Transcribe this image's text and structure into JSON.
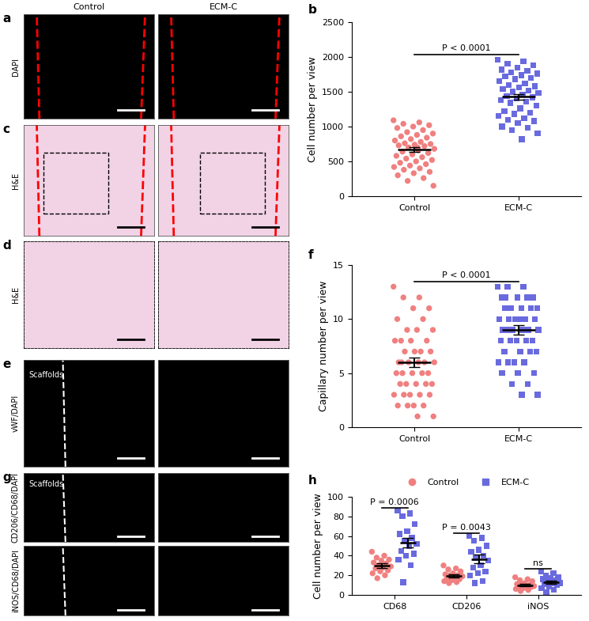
{
  "chart_data": [
    {
      "type": "scatter",
      "panel": "b",
      "categories": [
        "Control",
        "ECM-C"
      ],
      "ylabel": "Cell number per view",
      "ylim": [
        0,
        2500
      ],
      "yticks": [
        0,
        500,
        1000,
        1500,
        2000,
        2500
      ],
      "series": [
        {
          "name": "Control",
          "color": "#f08080",
          "marker": "o",
          "values": [
            [
              1090,
              1060,
              1040,
              1020,
              1000,
              980,
              950,
              920,
              900,
              880,
              860,
              840,
              820,
              800,
              780,
              760,
              750,
              740,
              730,
              720,
              700,
              680,
              660,
              640,
              620,
              600,
              580,
              560,
              540,
              520,
              500,
              480,
              460,
              440,
              420,
              400,
              380,
              350,
              330,
              300,
              260,
              220,
              150,
              700
            ],
            null
          ],
          "mean": [
            670,
            null
          ],
          "error": [
            30,
            null
          ]
        },
        {
          "name": "ECM-C",
          "color": "#6a6adf",
          "marker": "s",
          "values": [
            null,
            [
              1960,
              1940,
              1900,
              1880,
              1850,
              1820,
              1800,
              1780,
              1760,
              1740,
              1720,
              1700,
              1680,
              1650,
              1620,
              1600,
              1580,
              1560,
              1540,
              1520,
              1500,
              1480,
              1460,
              1440,
              1420,
              1400,
              1380,
              1360,
              1340,
              1300,
              1260,
              1220,
              1200,
              1180,
              1150,
              1120,
              1100,
              1080,
              1050,
              1000,
              980,
              950,
              900,
              820
            ]
          ],
          "mean": [
            null,
            1430
          ],
          "error": [
            null,
            40
          ]
        }
      ],
      "comparisons": [
        {
          "categories": [
            "Control",
            "ECM-C"
          ],
          "label": "P < 0.0001"
        }
      ]
    },
    {
      "type": "scatter",
      "panel": "f",
      "categories": [
        "Control",
        "ECM-C"
      ],
      "ylabel": "Capillary number per view",
      "ylim": [
        0,
        15
      ],
      "yticks": [
        0,
        5,
        10,
        15
      ],
      "series": [
        {
          "name": "Control",
          "color": "#f08080",
          "marker": "o",
          "values": [
            [
              13,
              12,
              12,
              11,
              11,
              10,
              10,
              9,
              9,
              9,
              8,
              8,
              8,
              8,
              7,
              7,
              7,
              7,
              6,
              6,
              6,
              6,
              6,
              5,
              5,
              5,
              5,
              5,
              4,
              4,
              4,
              4,
              4,
              3,
              3,
              3,
              3,
              3,
              2,
              2,
              2,
              2,
              1,
              1,
              6
            ],
            null
          ],
          "mean": [
            6.0,
            null
          ],
          "error": [
            0.45,
            null
          ]
        },
        {
          "name": "ECM-C",
          "color": "#6a6adf",
          "marker": "s",
          "values": [
            null,
            [
              13,
              13,
              13,
              12,
              12,
              12,
              12,
              11,
              11,
              11,
              11,
              11,
              10,
              10,
              10,
              10,
              10,
              10,
              9,
              9,
              9,
              9,
              9,
              9,
              8,
              8,
              8,
              8,
              8,
              7,
              7,
              7,
              7,
              6,
              6,
              6,
              6,
              5,
              5,
              5,
              4,
              4,
              3,
              3,
              12
            ]
          ],
          "mean": [
            null,
            9.0
          ],
          "error": [
            null,
            0.45
          ]
        }
      ],
      "comparisons": [
        {
          "categories": [
            "Control",
            "ECM-C"
          ],
          "label": "P < 0.0001"
        }
      ]
    },
    {
      "type": "scatter",
      "panel": "h",
      "categories": [
        "CD68",
        "CD206",
        "iNOS"
      ],
      "ylabel": "Cell number per view",
      "ylim": [
        0,
        100
      ],
      "yticks": [
        0,
        20,
        40,
        60,
        80,
        100
      ],
      "legend": "upper center",
      "series": [
        {
          "name": "Control",
          "color": "#f08080",
          "marker": "o",
          "values": [
            [
              44,
              40,
              38,
              36,
              35,
              33,
              32,
              30,
              29,
              28,
              27,
              25,
              24,
              22,
              20,
              17
            ],
            [
              30,
              27,
              26,
              24,
              22,
              21,
              20,
              20,
              19,
              18,
              17,
              16,
              15,
              14,
              13,
              12
            ],
            [
              18,
              16,
              15,
              14,
              12,
              11,
              10,
              10,
              9,
              9,
              8,
              8,
              7,
              6,
              5,
              4
            ]
          ],
          "mean": [
            30,
            19.5,
            10
          ],
          "error": [
            2.5,
            1.5,
            1
          ]
        },
        {
          "name": "ECM-C",
          "color": "#6a6adf",
          "marker": "s",
          "values": [
            [
              86,
              83,
              80,
              72,
              65,
              62,
              58,
              55,
              52,
              50,
              45,
              42,
              40,
              36,
              30,
              13
            ],
            [
              60,
              58,
              55,
              50,
              46,
              44,
              40,
              38,
              35,
              30,
              28,
              24,
              22,
              20,
              14,
              12
            ],
            [
              24,
              22,
              20,
              18,
              17,
              16,
              15,
              14,
              12,
              12,
              11,
              10,
              9,
              7,
              5,
              3
            ]
          ],
          "mean": [
            53,
            36.5,
            13
          ],
          "error": [
            5,
            4.5,
            1.5
          ]
        }
      ],
      "comparisons": [
        {
          "category": "CD68",
          "label": "P = 0.0006"
        },
        {
          "category": "CD206",
          "label": "P = 0.0043"
        },
        {
          "category": "iNOS",
          "label": "ns"
        }
      ]
    }
  ],
  "image_panels": {
    "columns": [
      "Control",
      "ECM-C"
    ],
    "rows": [
      {
        "panel": "a",
        "label": "DAPI"
      },
      {
        "panel": "c",
        "label": "H&E"
      },
      {
        "panel": "d",
        "label": "H&E"
      },
      {
        "panel": "e",
        "label": "vWF/DAPI",
        "inset_text": "Scaffolds"
      },
      {
        "panel": "g",
        "label": "CD206/CD68/DAPI",
        "inset_text": "Scaffolds"
      },
      {
        "panel": null,
        "label": "iNOS/CD68/DAPI"
      }
    ]
  }
}
